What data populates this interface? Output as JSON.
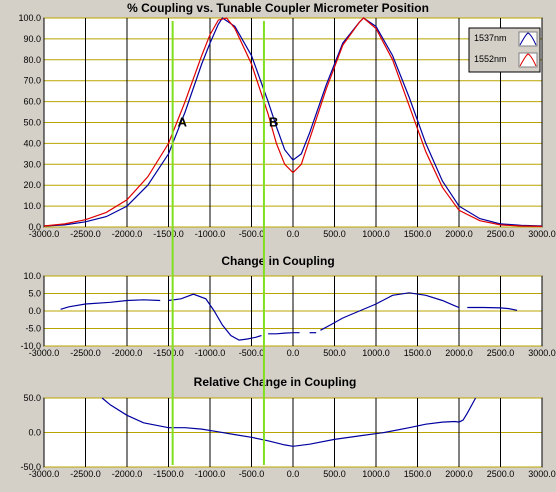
{
  "colors": {
    "background": "#d4d0c8",
    "plot_bg": "#ffffff",
    "grid_x": "#000000",
    "grid_y": "#b8a400",
    "series_1537": "#0000a0",
    "series_1552": "#e00000",
    "marker_line": "#80e020"
  },
  "chart_data": [
    {
      "type": "line",
      "title": "% Coupling vs. Tunable Coupler Micrometer Position",
      "xlim": [
        -3000,
        3000
      ],
      "ylim": [
        0,
        100
      ],
      "x_ticks": [
        -3000,
        -2500,
        -2000,
        -1500,
        -1000,
        -500,
        0,
        500,
        1000,
        1500,
        2000,
        2500,
        3000
      ],
      "x_tick_labels": [
        "-3000.0",
        "-2500.0",
        "-2000.0",
        "-1500.0",
        "-1000.0",
        "-500.0",
        "0.0",
        "500.0",
        "1000.0",
        "1500.0",
        "2000.0",
        "2500.0",
        "3000.0"
      ],
      "y_ticks": [
        0,
        10,
        20,
        30,
        40,
        50,
        60,
        70,
        80,
        90,
        100
      ],
      "y_tick_labels": [
        "0.0",
        "10.0",
        "20.0",
        "30.0",
        "40.0",
        "50.0",
        "60.0",
        "70.0",
        "80.0",
        "90.0",
        "100.0"
      ],
      "legend_position": "top-right",
      "grid": true,
      "series": [
        {
          "name": "1537nm",
          "color": "#0000a0",
          "x": [
            -3000,
            -2750,
            -2500,
            -2250,
            -2000,
            -1750,
            -1500,
            -1300,
            -1100,
            -1000,
            -900,
            -850,
            -700,
            -500,
            -300,
            -200,
            -100,
            0,
            100,
            200,
            400,
            600,
            800,
            850,
            1000,
            1200,
            1400,
            1600,
            1800,
            2000,
            2250,
            2500,
            2750,
            3000
          ],
          "y": [
            0.5,
            1,
            2.5,
            5,
            10,
            20,
            35,
            55,
            78,
            88,
            97,
            100,
            96,
            82,
            60,
            48,
            37,
            32,
            35,
            45,
            68,
            88,
            98,
            100,
            96,
            82,
            62,
            40,
            22,
            10,
            4,
            1.5,
            0.8,
            0.5
          ]
        },
        {
          "name": "1552nm",
          "color": "#e00000",
          "x": [
            -3000,
            -2750,
            -2500,
            -2250,
            -2000,
            -1750,
            -1500,
            -1300,
            -1100,
            -1000,
            -900,
            -800,
            -700,
            -500,
            -300,
            -200,
            -100,
            0,
            100,
            200,
            400,
            600,
            800,
            850,
            1000,
            1200,
            1400,
            1600,
            1800,
            2000,
            2250,
            2500,
            2750,
            3000
          ],
          "y": [
            0.5,
            1.5,
            3.5,
            7,
            13,
            24,
            40,
            60,
            82,
            92,
            99,
            100,
            95,
            78,
            54,
            40,
            30,
            26,
            30,
            42,
            66,
            87,
            98,
            100,
            95,
            80,
            58,
            36,
            19,
            8,
            3,
            1,
            0.5,
            0.3
          ]
        }
      ],
      "annotations": [
        {
          "label": "A",
          "x": -1450
        },
        {
          "label": "B",
          "x": -350
        }
      ]
    },
    {
      "type": "line",
      "title": "Change in Coupling",
      "xlim": [
        -3000,
        3000
      ],
      "ylim": [
        -10,
        10
      ],
      "x_ticks": [
        -3000,
        -2500,
        -2000,
        -1500,
        -1000,
        -500,
        0,
        500,
        1000,
        1500,
        2000,
        2500,
        3000
      ],
      "x_tick_labels": [
        "-3000.0",
        "-2500.0",
        "-2000.0",
        "-1500.0",
        "-1000.0",
        "-500.0",
        "0.0",
        "500.0",
        "1000.0",
        "1500.0",
        "2000.0",
        "2500.0",
        "3000.0"
      ],
      "y_ticks": [
        -10,
        -5,
        0,
        5,
        10
      ],
      "y_tick_labels": [
        "-10.0",
        "-5.0",
        "0.0",
        "5.0",
        "10.0"
      ],
      "grid": true,
      "series": [
        {
          "color": "#0000a0",
          "segments": [
            {
              "x": [
                -2800,
                -2700,
                -2500,
                -2200,
                -2000,
                -1800,
                -1600
              ],
              "y": [
                0.5,
                1.2,
                2,
                2.5,
                3,
                3.2,
                3
              ]
            },
            {
              "x": [
                -1500,
                -1350,
                -1200,
                -1050,
                -950,
                -850,
                -750,
                -650,
                -550,
                -450,
                -380
              ],
              "y": [
                3,
                3.5,
                4.8,
                3.5,
                0,
                -4,
                -7,
                -8.3,
                -8,
                -7.5,
                -7
              ]
            },
            {
              "x": [
                -300,
                -200,
                -100,
                0,
                80
              ],
              "y": [
                -6.5,
                -6.5,
                -6.3,
                -6.2,
                -6.2
              ]
            },
            {
              "x": [
                200,
                280
              ],
              "y": [
                -6.2,
                -6.2
              ]
            },
            {
              "x": [
                330,
                450,
                600,
                800,
                1000,
                1200,
                1400,
                1600,
                1800,
                1950,
                2000
              ],
              "y": [
                -5.5,
                -4,
                -2,
                0,
                2,
                4.5,
                5.2,
                4.5,
                3,
                1.5,
                1
              ]
            },
            {
              "x": [
                2100,
                2300,
                2500,
                2600,
                2700
              ],
              "y": [
                1,
                1,
                0.9,
                0.7,
                0.2
              ]
            }
          ]
        }
      ],
      "vlines": [
        -1450,
        -350
      ]
    },
    {
      "type": "line",
      "title": "Relative Change in Coupling",
      "xlim": [
        -3000,
        3000
      ],
      "ylim": [
        -50,
        50
      ],
      "x_ticks": [
        -3000,
        -2500,
        -2000,
        -1500,
        -1000,
        -500,
        0,
        500,
        1000,
        1500,
        2000,
        2500,
        3000
      ],
      "x_tick_labels": [
        "-3000.0",
        "-2500.0",
        "-2000.0",
        "-1500.0",
        "-1000.0",
        "-500.0",
        "0.0",
        "500.0",
        "1000.0",
        "1500.0",
        "2000.0",
        "2500.0",
        "3000.0"
      ],
      "y_ticks": [
        -50,
        0,
        50
      ],
      "y_tick_labels": [
        "-50.0",
        "0.0",
        "50.0"
      ],
      "grid": true,
      "series": [
        {
          "color": "#0000a0",
          "x": [
            -2300,
            -2200,
            -2000,
            -1800,
            -1500,
            -1300,
            -1100,
            -900,
            -700,
            -500,
            -300,
            -100,
            0,
            200,
            500,
            800,
            1100,
            1400,
            1600,
            1800,
            1950,
            2000,
            2050,
            2100,
            2200
          ],
          "y": [
            50,
            40,
            25,
            14,
            7,
            7,
            5,
            1,
            -3,
            -7,
            -12,
            -18,
            -20,
            -17,
            -10,
            -5,
            0,
            7,
            12,
            15,
            16,
            15,
            18,
            28,
            50
          ]
        }
      ],
      "vlines": [
        -1450,
        -350
      ]
    }
  ]
}
